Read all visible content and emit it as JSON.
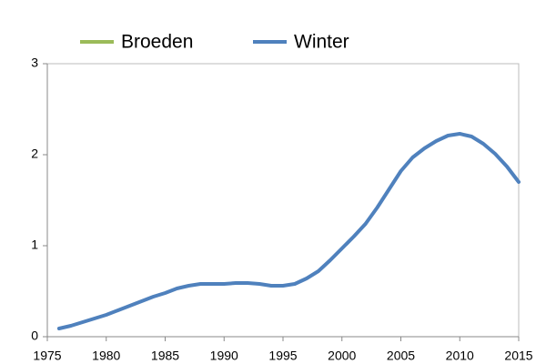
{
  "chart_data": {
    "type": "line",
    "x": [
      1976,
      1977,
      1978,
      1979,
      1980,
      1981,
      1982,
      1983,
      1984,
      1985,
      1986,
      1987,
      1988,
      1989,
      1990,
      1991,
      1992,
      1993,
      1994,
      1995,
      1996,
      1997,
      1998,
      1999,
      2000,
      2001,
      2002,
      2003,
      2004,
      2005,
      2006,
      2007,
      2008,
      2009,
      2010,
      2011,
      2012,
      2013,
      2014,
      2015
    ],
    "series": [
      {
        "name": "Broeden",
        "color": "#9bbb59",
        "values": [
          null,
          null,
          null,
          null,
          null,
          null,
          null,
          null,
          null,
          null,
          null,
          null,
          null,
          null,
          null,
          null,
          null,
          null,
          null,
          null,
          null,
          null,
          null,
          null,
          null,
          null,
          null,
          null,
          null,
          null,
          null,
          null,
          null,
          null,
          null,
          null,
          null,
          null,
          null,
          null
        ]
      },
      {
        "name": "Winter",
        "color": "#4f81bd",
        "values": [
          0.09,
          0.12,
          0.16,
          0.2,
          0.24,
          0.29,
          0.34,
          0.39,
          0.44,
          0.48,
          0.53,
          0.56,
          0.58,
          0.58,
          0.58,
          0.59,
          0.59,
          0.58,
          0.56,
          0.56,
          0.58,
          0.64,
          0.72,
          0.84,
          0.97,
          1.1,
          1.24,
          1.42,
          1.62,
          1.82,
          1.97,
          2.07,
          2.15,
          2.21,
          2.23,
          2.2,
          2.12,
          2.01,
          1.87,
          1.7
        ]
      }
    ],
    "xlim": [
      1975,
      2015
    ],
    "xticks": [
      1975,
      1980,
      1985,
      1990,
      1995,
      2000,
      2005,
      2010,
      2015
    ],
    "ylim": [
      0,
      3
    ],
    "yticks": [
      0,
      1,
      2,
      3
    ]
  }
}
